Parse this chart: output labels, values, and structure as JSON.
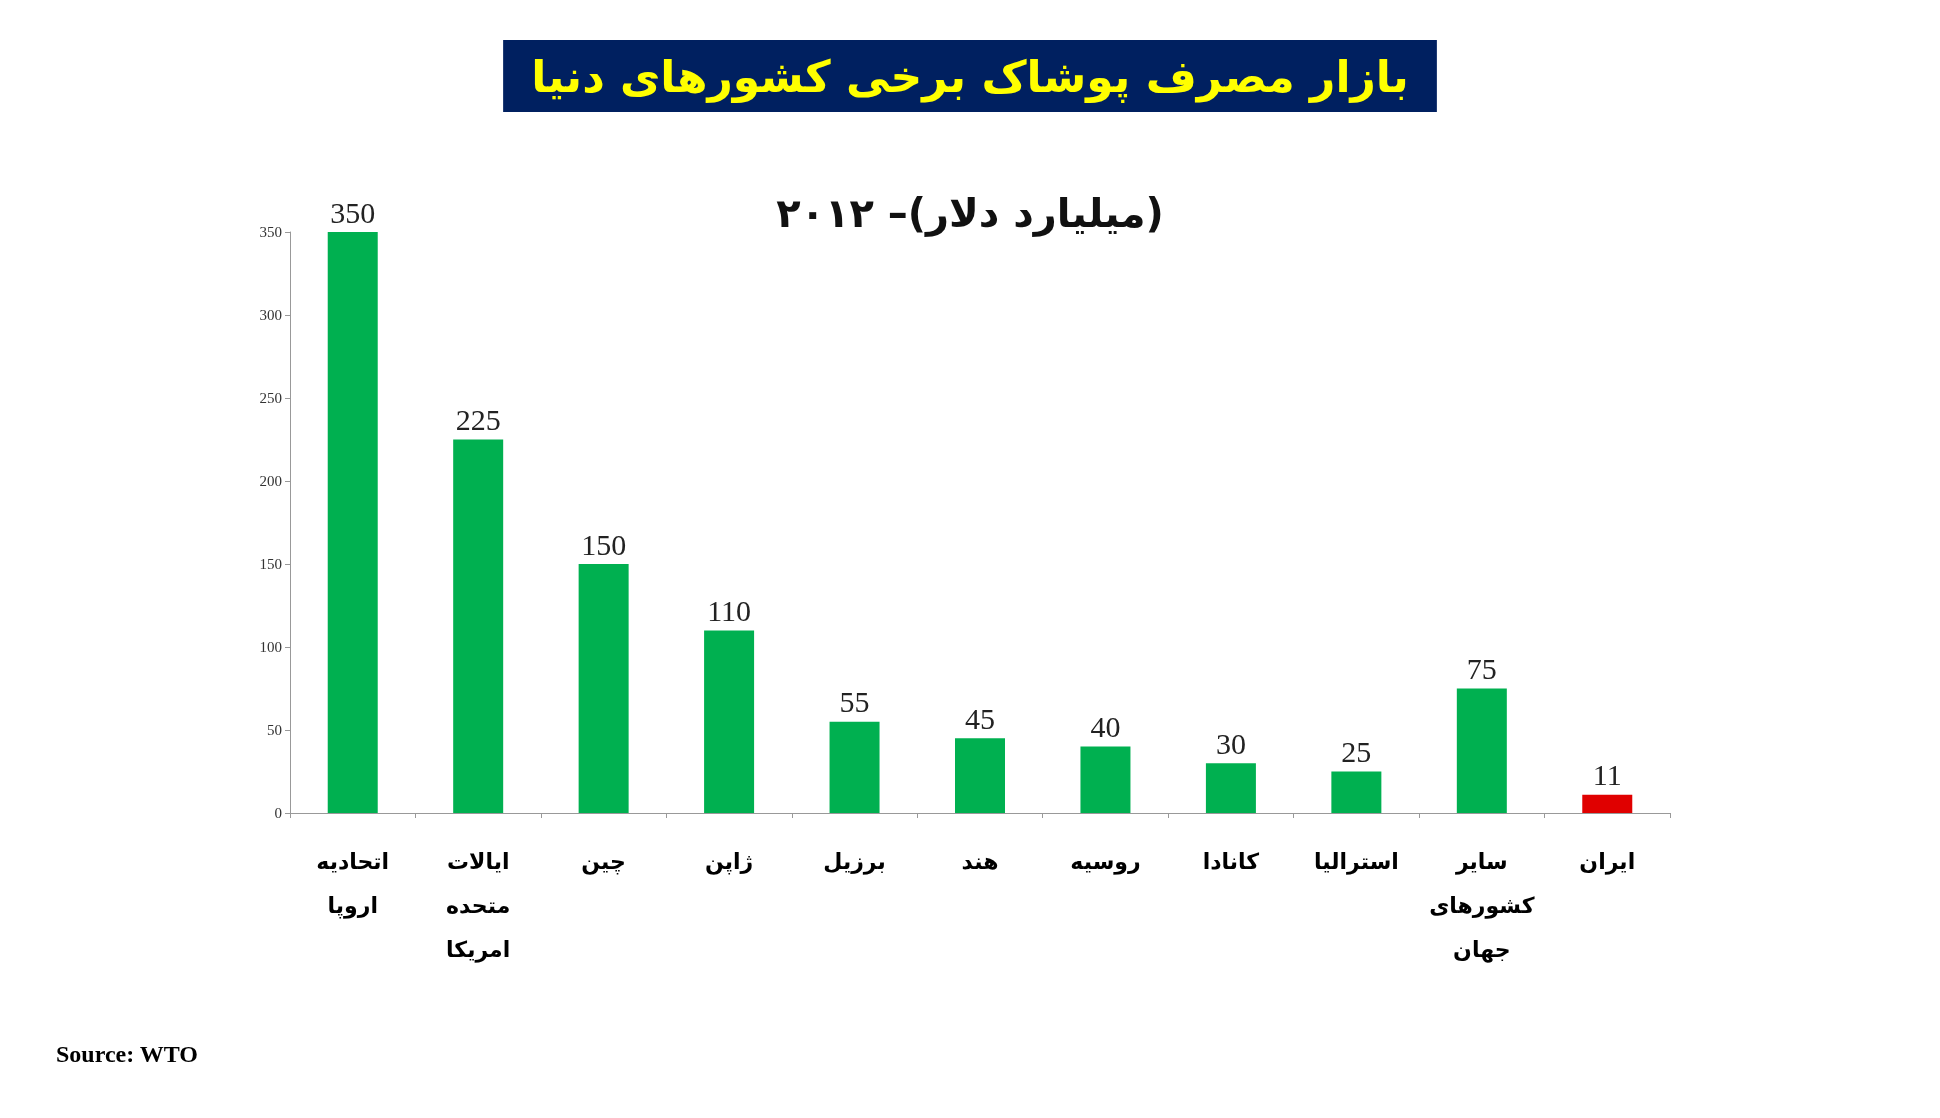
{
  "chart_data": {
    "type": "bar",
    "title": "بازار مصرف پوشاک برخی کشورهای دنیا",
    "subtitle": "(میلیارد دلار)– ۲۰۱۲",
    "categories": [
      "اتحادیه اروپا",
      "ایالات متحده امریکا",
      "چین",
      "ژاپن",
      "برزیل",
      "هند",
      "روسیه",
      "کانادا",
      "استرالیا",
      "سایر کشورهای جهان",
      "ایران"
    ],
    "values": [
      350,
      225,
      150,
      110,
      55,
      45,
      40,
      30,
      25,
      75,
      11
    ],
    "colors": [
      "#00b050",
      "#00b050",
      "#00b050",
      "#00b050",
      "#00b050",
      "#00b050",
      "#00b050",
      "#00b050",
      "#00b050",
      "#00b050",
      "#e00000"
    ],
    "ylim": [
      0,
      350
    ],
    "yticks": [
      0,
      50,
      100,
      150,
      200,
      250,
      300,
      350
    ],
    "data_labels": true,
    "grid": false,
    "annotations": [
      "Source: WTO"
    ]
  }
}
